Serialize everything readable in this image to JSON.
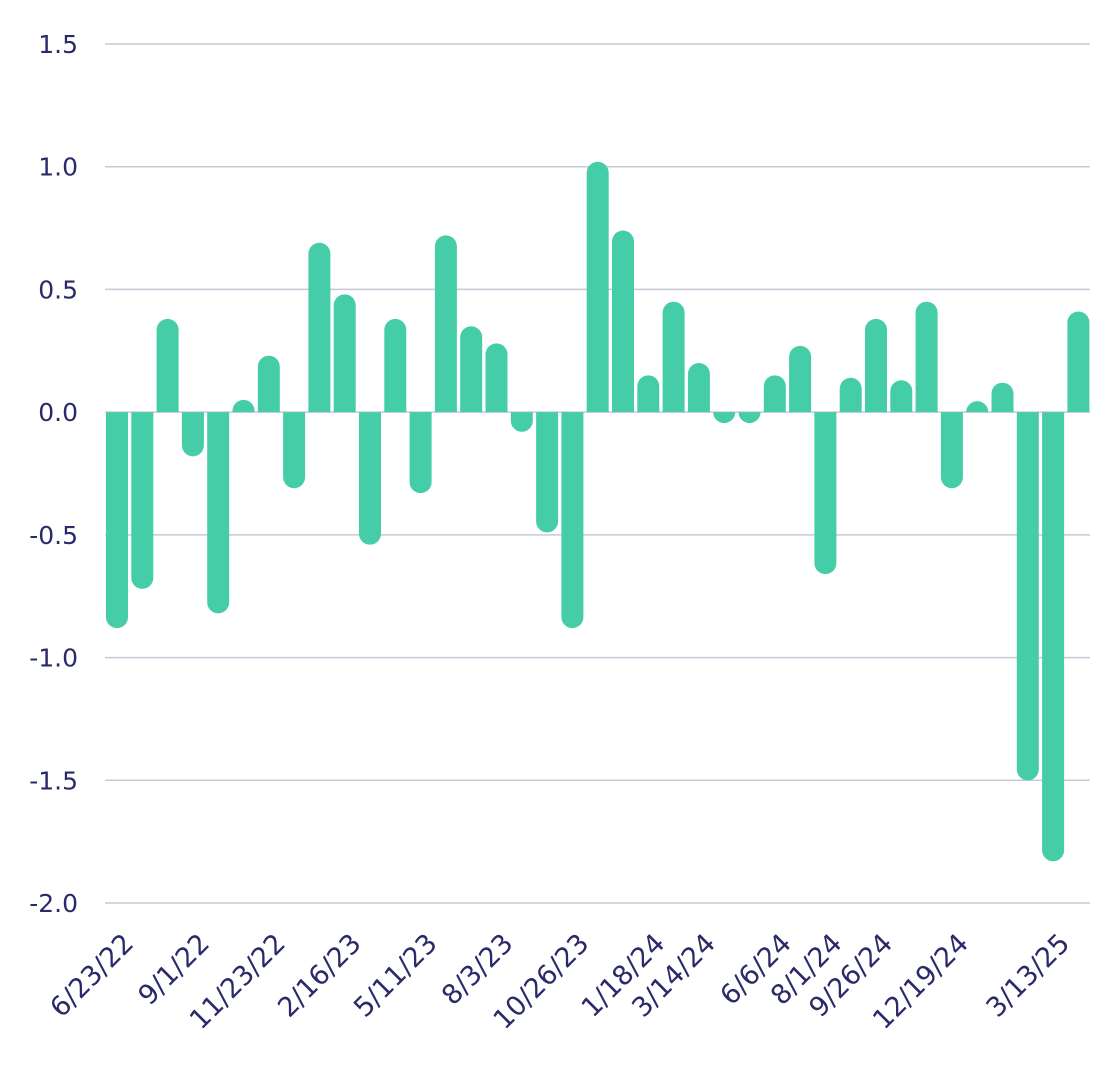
{
  "chart_data": {
    "type": "bar",
    "title": "",
    "xlabel": "",
    "ylabel": "",
    "ylim": [
      -2.0,
      1.5
    ],
    "yticks": [
      1.5,
      1.0,
      0.5,
      0.0,
      -0.5,
      -1.0,
      -1.5,
      -2.0
    ],
    "ytick_labels": [
      "1.5",
      "1.0",
      "0.5",
      "0.0",
      "-0.5",
      "-1.0",
      "-1.5",
      "-2.0"
    ],
    "grid": true,
    "legend": "none",
    "bar_color": "#45CDA8",
    "grid_color": "#c8c8d8",
    "text_color": "#2a2a6a",
    "xtick_labels": [
      {
        "index": 0,
        "label": "6/23/22"
      },
      {
        "index": 3,
        "label": "9/1/22"
      },
      {
        "index": 6,
        "label": "11/23/22"
      },
      {
        "index": 9,
        "label": "2/16/23"
      },
      {
        "index": 12,
        "label": "5/11/23"
      },
      {
        "index": 15,
        "label": "8/3/23"
      },
      {
        "index": 18,
        "label": "10/26/23"
      },
      {
        "index": 21,
        "label": "1/18/24"
      },
      {
        "index": 23,
        "label": "3/14/24"
      },
      {
        "index": 26,
        "label": "6/6/24"
      },
      {
        "index": 28,
        "label": "8/1/24"
      },
      {
        "index": 30,
        "label": "9/26/24"
      },
      {
        "index": 33,
        "label": "12/19/24"
      },
      {
        "index": 37,
        "label": "3/13/25"
      }
    ],
    "values": [
      -0.88,
      -0.72,
      0.38,
      -0.18,
      -0.82,
      0.05,
      0.23,
      -0.31,
      0.69,
      0.48,
      -0.54,
      0.38,
      -0.33,
      0.72,
      0.35,
      0.28,
      -0.08,
      -0.49,
      -0.88,
      1.02,
      0.74,
      0.15,
      0.45,
      0.2,
      -0.03,
      -0.01,
      0.15,
      0.27,
      -0.66,
      0.14,
      0.38,
      0.13,
      0.45,
      -0.31,
      0.03,
      0.12,
      -1.5,
      -1.83,
      0.41
    ]
  }
}
